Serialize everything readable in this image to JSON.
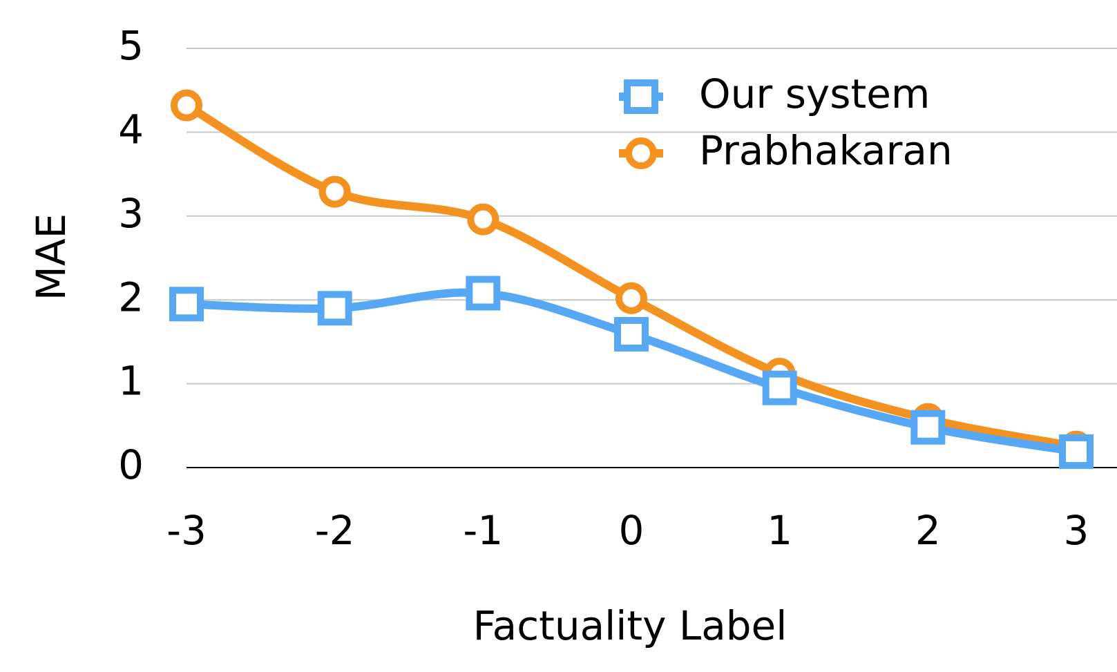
{
  "chart_data": {
    "type": "line",
    "x": [
      -3,
      -2,
      -1,
      0,
      1,
      2,
      3
    ],
    "series": [
      {
        "name": "Our system",
        "color": "#56a8f5",
        "marker": "square",
        "values": [
          1.95,
          1.9,
          2.08,
          1.59,
          0.95,
          0.48,
          0.19
        ]
      },
      {
        "name": "Prabhakaran",
        "color": "#f39220",
        "marker": "circle",
        "values": [
          4.32,
          3.29,
          2.96,
          2.02,
          1.12,
          0.58,
          0.25
        ]
      }
    ],
    "xlabel": "Factuality Label",
    "ylabel": "MAE",
    "xlim": [
      -3,
      3
    ],
    "xticks": [
      -3,
      -2,
      -1,
      0,
      1,
      2,
      3
    ],
    "ylim": [
      0,
      5
    ],
    "yticks": [
      0,
      1,
      2,
      3,
      4,
      5
    ],
    "grid": true,
    "legend": "upper right",
    "smooth": true
  }
}
